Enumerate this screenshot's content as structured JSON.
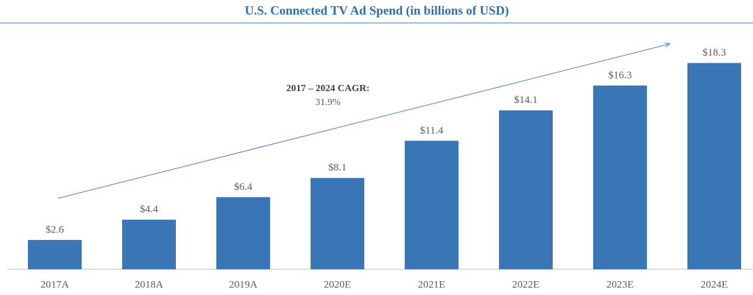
{
  "chart_data": {
    "type": "bar",
    "title": "U.S. Connected TV Ad Spend (in billions of USD)",
    "annotations": [
      "2017 – 2024 CAGR:",
      "31.9%"
    ],
    "categories": [
      "2017A",
      "2018A",
      "2019A",
      "2020E",
      "2021E",
      "2022E",
      "2023E",
      "2024E"
    ],
    "values": [
      2.6,
      4.4,
      6.4,
      8.1,
      11.4,
      14.1,
      16.3,
      18.3
    ],
    "value_labels": [
      "$2.6",
      "$4.4",
      "$6.4",
      "$8.1",
      "$11.4",
      "$14.1",
      "$16.3",
      "$18.3"
    ],
    "color": "#3a75b5"
  }
}
